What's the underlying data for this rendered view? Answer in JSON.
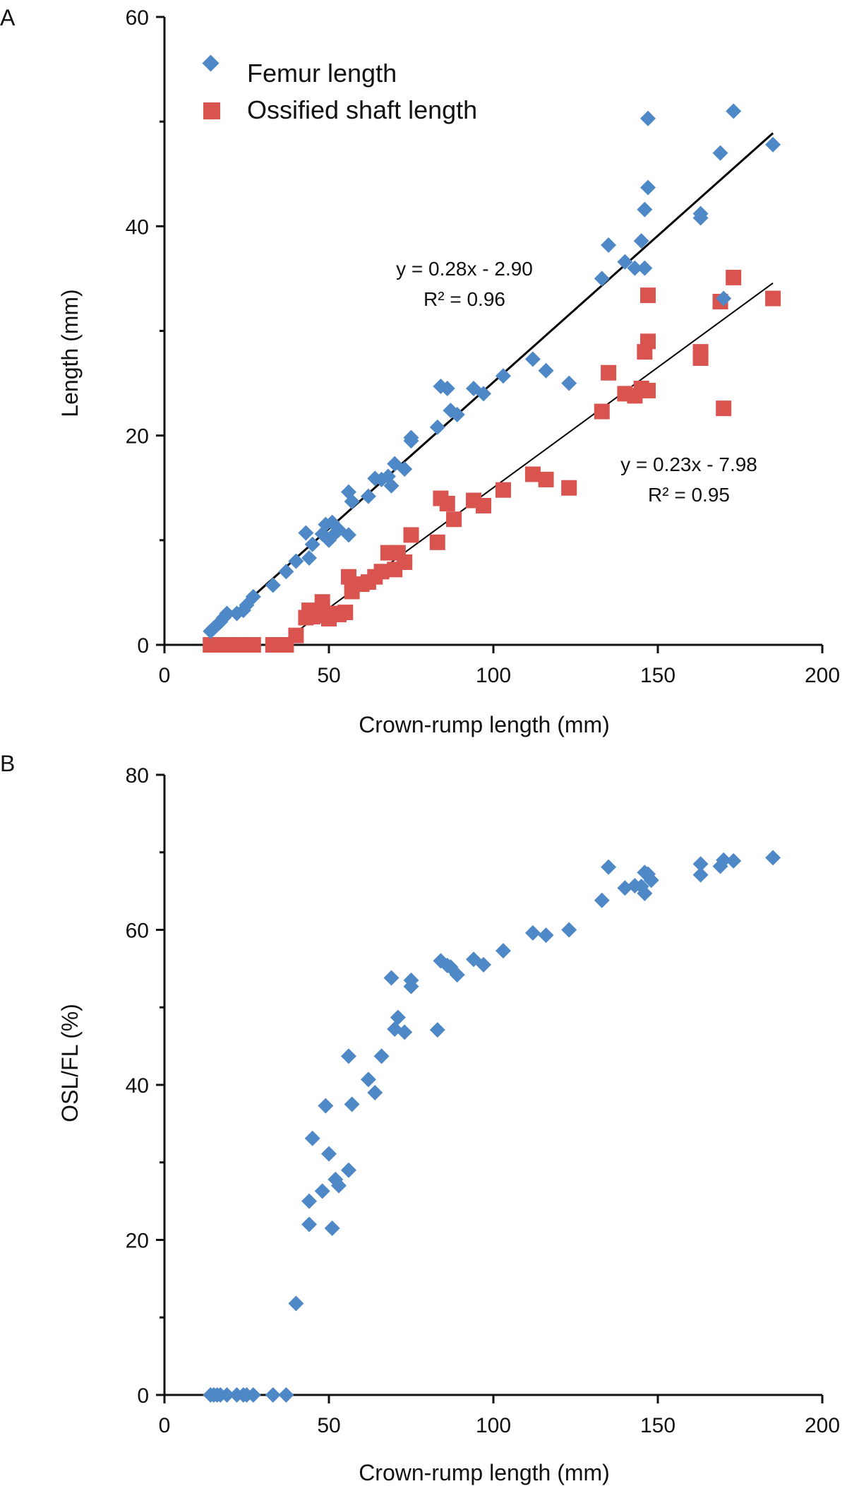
{
  "colors": {
    "femur": "#4f88c6",
    "shaft": "#d9534f",
    "axis": "#111111",
    "trendline": "#000000"
  },
  "chart_data": [
    {
      "panel": "A",
      "type": "scatter",
      "xlabel": "Crown-rump length (mm)",
      "ylabel": "Length (mm)",
      "xlim": [
        0,
        200
      ],
      "ylim": [
        0,
        60
      ],
      "x_ticks": [
        "0",
        "50",
        "100",
        "150",
        "200"
      ],
      "y_ticks": [
        "0",
        "20",
        "40",
        "60"
      ],
      "grid": false,
      "legend": "top-left",
      "series": [
        {
          "name": "Femur length",
          "marker": "diamond-icon",
          "color": "#4f88c6",
          "points": [
            [
              14,
              1.3
            ],
            [
              15,
              1.6
            ],
            [
              16,
              1.9
            ],
            [
              17,
              2.2
            ],
            [
              18,
              2.6
            ],
            [
              19,
              3.0
            ],
            [
              22,
              3.0
            ],
            [
              24,
              3.3
            ],
            [
              25,
              3.8
            ],
            [
              27,
              4.6
            ],
            [
              33,
              5.7
            ],
            [
              37,
              7.0
            ],
            [
              40,
              8.0
            ],
            [
              43,
              10.7
            ],
            [
              44,
              8.3
            ],
            [
              45,
              9.6
            ],
            [
              48,
              10.6
            ],
            [
              49,
              11.5
            ],
            [
              50,
              10.0
            ],
            [
              51,
              11.7
            ],
            [
              52,
              10.7
            ],
            [
              53,
              11.0
            ],
            [
              56,
              10.5
            ],
            [
              56,
              14.6
            ],
            [
              57,
              13.7
            ],
            [
              62,
              14.2
            ],
            [
              64,
              15.9
            ],
            [
              66,
              15.8
            ],
            [
              68,
              16.1
            ],
            [
              69,
              15.2
            ],
            [
              70,
              17.3
            ],
            [
              73,
              16.8
            ],
            [
              75,
              19.8
            ],
            [
              75,
              19.5
            ],
            [
              83,
              20.8
            ],
            [
              84,
              24.7
            ],
            [
              86,
              24.5
            ],
            [
              87,
              22.4
            ],
            [
              89,
              22.0
            ],
            [
              94,
              24.5
            ],
            [
              97,
              24.0
            ],
            [
              103,
              25.7
            ],
            [
              112,
              27.3
            ],
            [
              116,
              26.2
            ],
            [
              123,
              25.0
            ],
            [
              133,
              35.0
            ],
            [
              135,
              38.2
            ],
            [
              140,
              36.6
            ],
            [
              143,
              36.0
            ],
            [
              145,
              38.6
            ],
            [
              146,
              41.6
            ],
            [
              146,
              36.0
            ],
            [
              147,
              43.7
            ],
            [
              147,
              50.3
            ],
            [
              163,
              41.2
            ],
            [
              163,
              40.8
            ],
            [
              169,
              47.0
            ],
            [
              170,
              33.1
            ],
            [
              173,
              51.0
            ],
            [
              185,
              47.8
            ]
          ]
        },
        {
          "name": "Ossified shaft length",
          "marker": "square-icon",
          "color": "#d9534f",
          "points": [
            [
              14,
              0
            ],
            [
              15,
              0
            ],
            [
              16,
              0
            ],
            [
              17,
              0
            ],
            [
              18,
              0
            ],
            [
              19,
              0
            ],
            [
              20,
              0
            ],
            [
              22,
              0
            ],
            [
              24,
              0
            ],
            [
              25,
              0
            ],
            [
              27,
              0
            ],
            [
              33,
              0
            ],
            [
              35,
              0
            ],
            [
              37,
              0
            ],
            [
              40,
              0.9
            ],
            [
              43,
              2.6
            ],
            [
              44,
              3.3
            ],
            [
              45,
              2.7
            ],
            [
              48,
              4.1
            ],
            [
              49,
              2.8
            ],
            [
              50,
              2.5
            ],
            [
              52,
              3.0
            ],
            [
              53,
              2.9
            ],
            [
              55,
              3.1
            ],
            [
              56,
              6.5
            ],
            [
              57,
              5.1
            ],
            [
              60,
              5.8
            ],
            [
              62,
              6.0
            ],
            [
              64,
              6.5
            ],
            [
              66,
              7.0
            ],
            [
              68,
              8.8
            ],
            [
              70,
              7.2
            ],
            [
              71,
              8.8
            ],
            [
              73,
              7.9
            ],
            [
              75,
              10.5
            ],
            [
              83,
              9.8
            ],
            [
              84,
              14.0
            ],
            [
              86,
              13.5
            ],
            [
              88,
              12.0
            ],
            [
              94,
              13.8
            ],
            [
              97,
              13.3
            ],
            [
              103,
              14.8
            ],
            [
              112,
              16.3
            ],
            [
              116,
              15.8
            ],
            [
              123,
              15.0
            ],
            [
              133,
              22.3
            ],
            [
              135,
              26.0
            ],
            [
              140,
              24.0
            ],
            [
              143,
              23.8
            ],
            [
              145,
              24.5
            ],
            [
              146,
              28.0
            ],
            [
              147,
              24.3
            ],
            [
              147,
              33.4
            ],
            [
              147,
              29.0
            ],
            [
              163,
              28.0
            ],
            [
              163,
              27.4
            ],
            [
              169,
              32.8
            ],
            [
              170,
              22.6
            ],
            [
              173,
              35.1
            ],
            [
              185,
              33.1
            ]
          ]
        }
      ],
      "trendlines": [
        {
          "series": "Femur length",
          "slope": 0.28,
          "intercept": -2.9,
          "x_range": [
            14,
            185
          ],
          "equation": "y = 0.28x - 2.90",
          "r2": "R² = 0.96"
        },
        {
          "series": "Ossified shaft length",
          "slope": 0.23,
          "intercept": -7.98,
          "x_range": [
            36,
            185
          ],
          "equation": "y = 0.23x - 7.98",
          "r2": "R² = 0.95"
        }
      ]
    },
    {
      "panel": "B",
      "type": "scatter",
      "xlabel": "Crown-rump length (mm)",
      "ylabel": "OSL/FL (%)",
      "xlim": [
        0,
        200
      ],
      "ylim": [
        0,
        80
      ],
      "x_ticks": [
        "0",
        "50",
        "100",
        "150",
        "200"
      ],
      "y_ticks": [
        "0",
        "20",
        "40",
        "60",
        "80"
      ],
      "grid": false,
      "legend": "none",
      "series": [
        {
          "marker": "diamond-icon",
          "color": "#4f88c6",
          "points": [
            [
              14,
              0
            ],
            [
              15,
              0
            ],
            [
              16,
              0
            ],
            [
              17,
              0
            ],
            [
              19,
              0
            ],
            [
              22,
              0
            ],
            [
              24,
              0
            ],
            [
              25,
              0
            ],
            [
              27,
              0
            ],
            [
              33,
              0
            ],
            [
              37,
              0
            ],
            [
              40,
              11.8
            ],
            [
              44,
              25.0
            ],
            [
              44,
              22.0
            ],
            [
              45,
              33.1
            ],
            [
              48,
              26.3
            ],
            [
              49,
              37.3
            ],
            [
              50,
              31.1
            ],
            [
              51,
              21.5
            ],
            [
              52,
              27.8
            ],
            [
              53,
              27.0
            ],
            [
              56,
              43.7
            ],
            [
              56,
              29.0
            ],
            [
              57,
              37.5
            ],
            [
              62,
              40.7
            ],
            [
              64,
              39.0
            ],
            [
              66,
              43.7
            ],
            [
              69,
              53.8
            ],
            [
              70,
              47.2
            ],
            [
              71,
              48.7
            ],
            [
              73,
              46.8
            ],
            [
              75,
              53.5
            ],
            [
              75,
              52.7
            ],
            [
              83,
              47.1
            ],
            [
              84,
              56.0
            ],
            [
              86,
              55.4
            ],
            [
              87,
              55.2
            ],
            [
              89,
              54.2
            ],
            [
              94,
              56.2
            ],
            [
              97,
              55.5
            ],
            [
              103,
              57.3
            ],
            [
              112,
              59.6
            ],
            [
              116,
              59.3
            ],
            [
              123,
              60.0
            ],
            [
              133,
              63.8
            ],
            [
              135,
              68.1
            ],
            [
              140,
              65.4
            ],
            [
              143,
              65.7
            ],
            [
              145,
              65.6
            ],
            [
              146,
              64.7
            ],
            [
              146,
              67.4
            ],
            [
              147,
              67.2
            ],
            [
              148,
              66.4
            ],
            [
              163,
              67.1
            ],
            [
              163,
              68.5
            ],
            [
              169,
              68.2
            ],
            [
              170,
              69.0
            ],
            [
              173,
              68.9
            ],
            [
              185,
              69.3
            ]
          ]
        }
      ]
    }
  ]
}
